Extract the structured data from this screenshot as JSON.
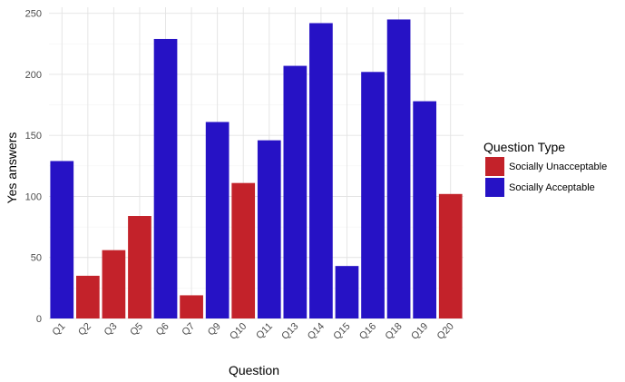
{
  "chart_data": {
    "type": "bar",
    "xlabel": "Question",
    "ylabel": "Yes answers",
    "ylim": [
      0,
      255
    ],
    "yticks": [
      0,
      50,
      100,
      150,
      200,
      250
    ],
    "grid": true,
    "legend": {
      "title": "Question Type",
      "placement": "right",
      "entries": [
        {
          "label": "Socially Unacceptable",
          "color": "#c3222a"
        },
        {
          "label": "Socially Acceptable",
          "color": "#2612c5"
        }
      ]
    },
    "categories": [
      "Q1",
      "Q2",
      "Q3",
      "Q5",
      "Q6",
      "Q7",
      "Q9",
      "Q10",
      "Q11",
      "Q13",
      "Q14",
      "Q15",
      "Q16",
      "Q18",
      "Q19",
      "Q20"
    ],
    "values": [
      129,
      35,
      56,
      84,
      229,
      19,
      161,
      111,
      146,
      207,
      242,
      43,
      202,
      245,
      178,
      102
    ],
    "types": [
      "Socially Acceptable",
      "Socially Unacceptable",
      "Socially Unacceptable",
      "Socially Unacceptable",
      "Socially Acceptable",
      "Socially Unacceptable",
      "Socially Acceptable",
      "Socially Unacceptable",
      "Socially Acceptable",
      "Socially Acceptable",
      "Socially Acceptable",
      "Socially Acceptable",
      "Socially Acceptable",
      "Socially Acceptable",
      "Socially Acceptable",
      "Socially Unacceptable"
    ]
  }
}
